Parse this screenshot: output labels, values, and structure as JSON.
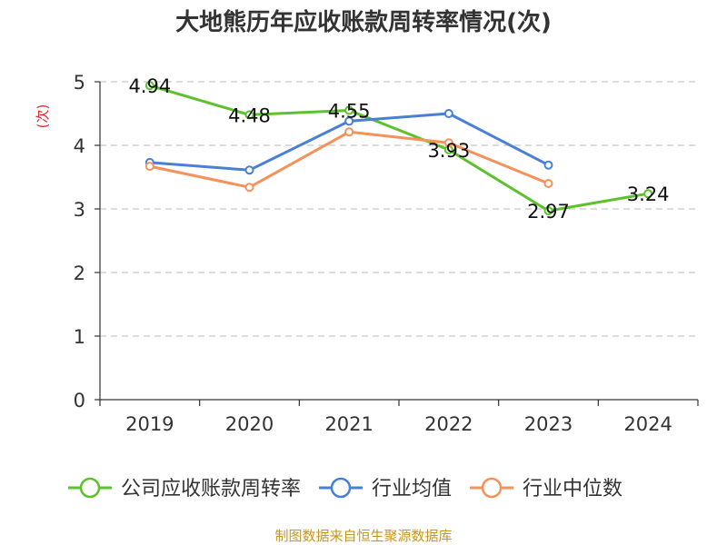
{
  "chart_data": {
    "type": "line",
    "title": "大地熊历年应收账款周转率情况(次)",
    "ylabel": "(次)",
    "xlabel": "",
    "categories": [
      "2019",
      "2020",
      "2021",
      "2022",
      "2023",
      "2024"
    ],
    "ylim": [
      0,
      5
    ],
    "yticks": [
      "0",
      "1",
      "2",
      "3",
      "4",
      "5"
    ],
    "grid": true,
    "legend_position": "bottom",
    "series": [
      {
        "name": "公司应收账款周转率",
        "color": "#5cc12c",
        "values": [
          4.94,
          4.48,
          4.55,
          3.93,
          2.97,
          3.24
        ],
        "labels": [
          "4.94",
          "4.48",
          "4.55",
          "3.93",
          "2.97",
          "3.24"
        ]
      },
      {
        "name": "行业均值",
        "color": "#4a7fd6",
        "values": [
          3.73,
          3.61,
          4.38,
          4.5,
          3.69,
          null
        ]
      },
      {
        "name": "行业中位数",
        "color": "#f5915a",
        "values": [
          3.67,
          3.34,
          4.21,
          4.04,
          3.4,
          null
        ]
      }
    ]
  },
  "footer": {
    "source": "制图数据来自恒生聚源数据库"
  }
}
